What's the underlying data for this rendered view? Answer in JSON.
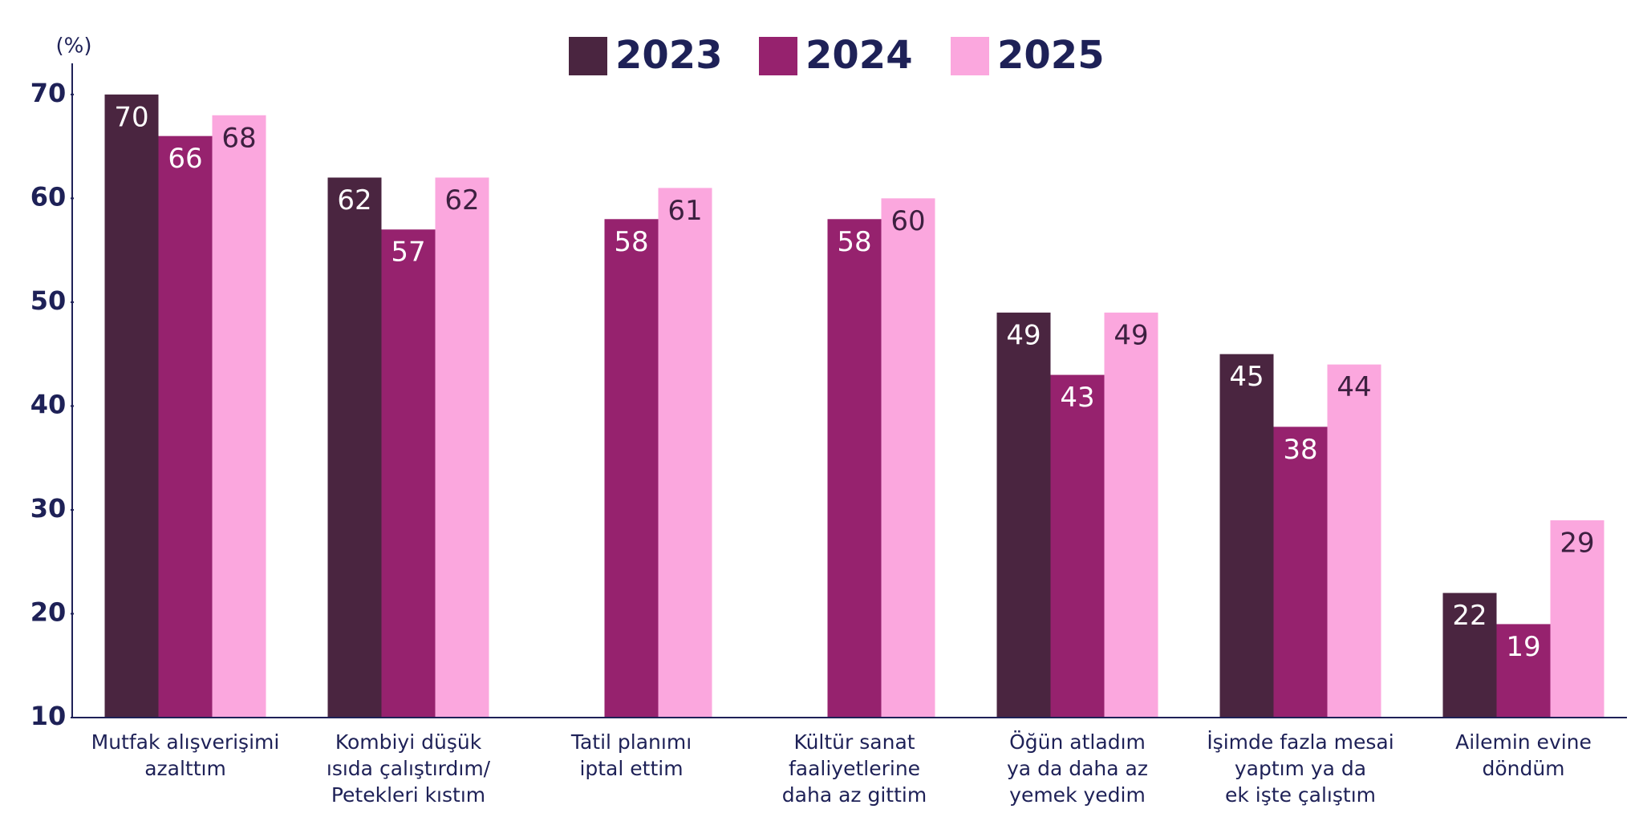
{
  "chart_data": {
    "type": "bar",
    "ylabel": "(%)",
    "categories": [
      "Mutfak alışverişimi\nazalttım",
      "Kombiyi düşük\nısıda çalıştırdım/\nPetekleri kıstım",
      "Tatil planımı\niptal ettim",
      "Kültür sanat\nfaaliyetlerine\ndaha az gittim",
      "Öğün atladım\nya da daha az\nyemek yedim",
      "İşimde fazla mesai\nyaptım ya da\nek işte çalıştım",
      "Ailemin evine\ndöndüm"
    ],
    "series": [
      {
        "name": "2023",
        "color": "#4a2540",
        "label_color": "#ffffff",
        "values": [
          70,
          62,
          null,
          null,
          49,
          45,
          22
        ]
      },
      {
        "name": "2024",
        "color": "#96226e",
        "label_color": "#ffffff",
        "values": [
          66,
          57,
          58,
          58,
          43,
          38,
          19
        ]
      },
      {
        "name": "2025",
        "color": "#fba7de",
        "label_color": "#3d2040",
        "values": [
          68,
          62,
          61,
          60,
          49,
          44,
          29
        ]
      }
    ],
    "ylim": [
      10,
      73
    ],
    "yticks": [
      10,
      20,
      30,
      40,
      50,
      60,
      70
    ],
    "legend": "top"
  }
}
